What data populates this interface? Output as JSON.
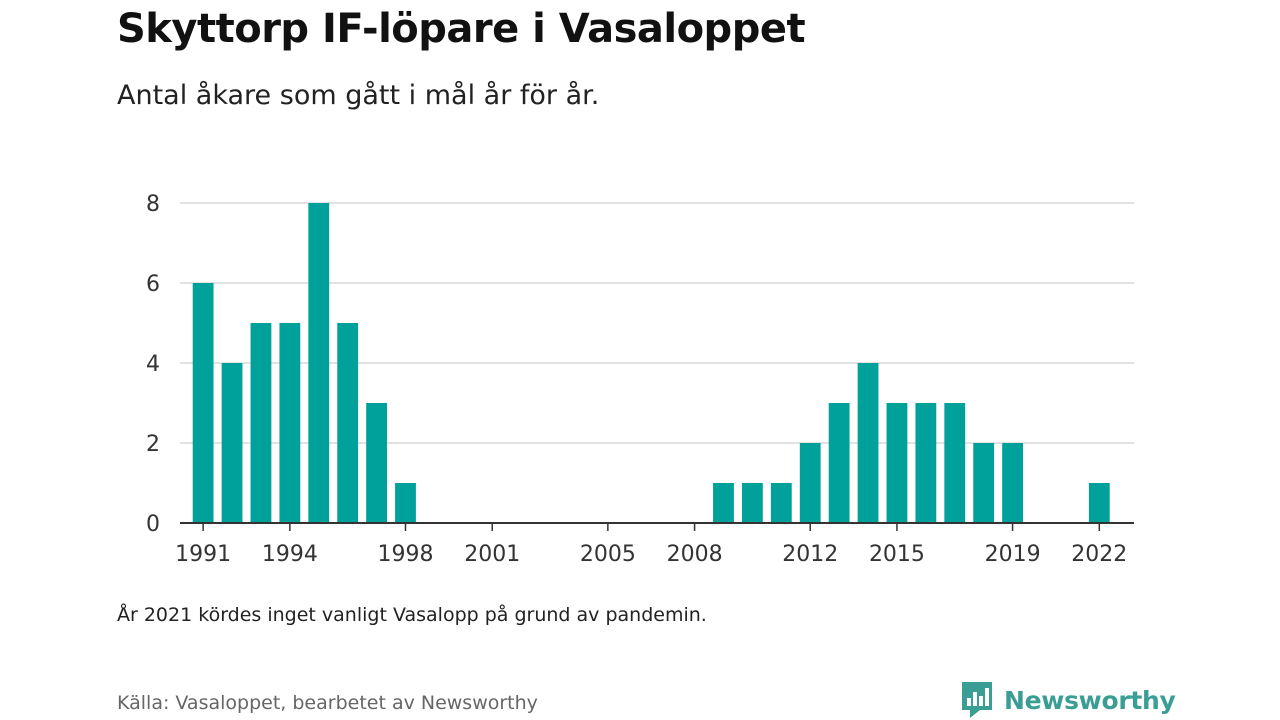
{
  "chart_data": {
    "type": "bar",
    "title": "Skyttorp IF-löpare i Vasaloppet",
    "subtitle": "Antal åkare som gått i mål år för år.",
    "x": [
      1991,
      1992,
      1993,
      1994,
      1995,
      1996,
      1997,
      1998,
      2009,
      2010,
      2011,
      2012,
      2013,
      2014,
      2015,
      2016,
      2017,
      2018,
      2019,
      2022
    ],
    "values": [
      6,
      4,
      5,
      5,
      8,
      5,
      3,
      1,
      1,
      1,
      1,
      2,
      3,
      4,
      3,
      3,
      3,
      2,
      2,
      1
    ],
    "xlim": [
      1990.2,
      2023.2
    ],
    "ylim": [
      0,
      8
    ],
    "yticks": [
      0,
      2,
      4,
      6,
      8
    ],
    "xticks": [
      1991,
      1994,
      1998,
      2001,
      2005,
      2008,
      2012,
      2015,
      2019,
      2022
    ],
    "grid": true,
    "bar_color": "#00a19a",
    "xlabel": "",
    "ylabel": ""
  },
  "note": "År 2021 kördes inget vanligt Vasalopp på grund av pandemin.",
  "source": "Källa: Vasaloppet, bearbetet av Newsworthy",
  "brand": {
    "name": "Newsworthy",
    "icon": "newsworthy-logo-icon",
    "color": "#3a9e94"
  }
}
